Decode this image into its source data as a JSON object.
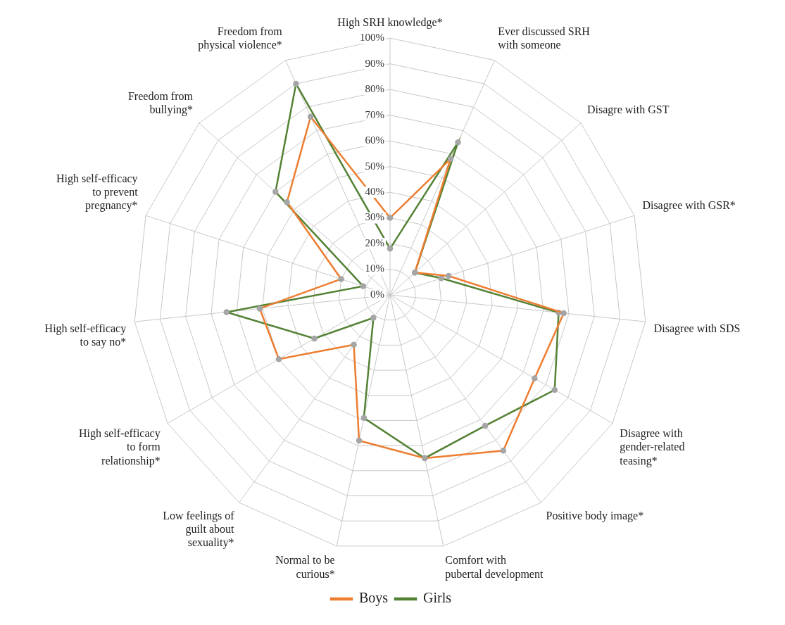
{
  "chart_data": {
    "type": "radar",
    "categories": [
      "High SRH knowledge*",
      "Ever discussed SRH with someone",
      "Disagre with GST",
      "Disagree with GSR*",
      "Disagree with SDS",
      "Disagree with gender-related teasing*",
      "Positive body image*",
      "Comfort with pubertal development",
      "Normal to be curious*",
      "Low feelings of guilt about sexuality*",
      "High self-efficacy to form relationship*",
      "High self-efficacy to say no*",
      "High self-efficacy to prevent pregnancy*",
      "Freedom from bullying*",
      "Freedom from physical violence*"
    ],
    "series": [
      {
        "name": "Boys",
        "color": "#ed7d31",
        "values": [
          30,
          58,
          13,
          24,
          68,
          65,
          75,
          65,
          58,
          24,
          50,
          51,
          20,
          54,
          76
        ]
      },
      {
        "name": "Girls",
        "color": "#548235",
        "values": [
          18,
          65,
          13,
          21,
          66,
          74,
          63,
          65,
          49,
          11,
          34,
          64,
          11,
          60,
          90
        ]
      }
    ],
    "ylim": [
      0,
      100
    ],
    "yticks": [
      {
        "value": 0,
        "label": "0%"
      },
      {
        "value": 10,
        "label": "10%"
      },
      {
        "value": 20,
        "label": "20%"
      },
      {
        "value": 30,
        "label": "30%"
      },
      {
        "value": 40,
        "label": "40%"
      },
      {
        "value": 50,
        "label": "50%"
      },
      {
        "value": 60,
        "label": "60%"
      },
      {
        "value": 70,
        "label": "70%"
      },
      {
        "value": 80,
        "label": "80%"
      },
      {
        "value": 90,
        "label": "90%"
      },
      {
        "value": 100,
        "label": "100%"
      }
    ],
    "grid": true,
    "legend": "bottom",
    "marker": "circle"
  }
}
